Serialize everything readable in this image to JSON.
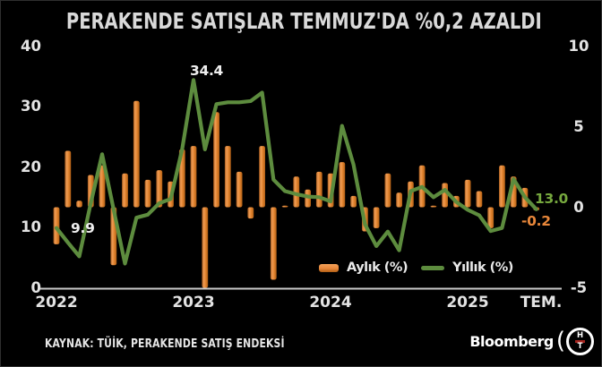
{
  "title": "PERAKENDE SATIŞLAR TEMMUZ'DA %0,2 AZALDI",
  "source": "KAYNAK: TÜİK, PERAKENDE SATIŞ ENDEKSİ",
  "branding": {
    "wordmark": "Bloomberg",
    "paren": "(",
    "emblem_top": "H",
    "emblem_bottom": "T"
  },
  "colors": {
    "background": "#000000",
    "text": "#e3e3e3",
    "bar_orange": "#e8873a",
    "line_green": "#5d8c3e",
    "annotation_green": "#76a83e",
    "annotation_orange": "#e8873a",
    "axis_line": "#c9c9c9",
    "logo_red": "#a6241f"
  },
  "chart_data": {
    "type": "bar+line",
    "x_unit": "month",
    "start": "2022-01",
    "end": "2025-07",
    "grid": false,
    "left_axis": {
      "range": [
        0,
        40
      ],
      "ticks": [
        0,
        10,
        20,
        30,
        40
      ],
      "series": "Yıllık (%)"
    },
    "right_axis": {
      "range": [
        -5,
        10
      ],
      "ticks": [
        -5,
        0,
        5,
        10
      ],
      "series": "Aylık (%)"
    },
    "x_ticks": [
      {
        "label": "2022",
        "m": 0
      },
      {
        "label": "2023",
        "m": 12
      },
      {
        "label": "2024",
        "m": 24
      },
      {
        "label": "2025",
        "m": 36
      },
      {
        "label": "TEM.",
        "m": 42
      }
    ],
    "series": [
      {
        "name": "Aylık (%)",
        "type": "bar",
        "axis": "right",
        "color": "#e8873a",
        "values": [
          -2.3,
          3.5,
          0.4,
          2.0,
          2.6,
          -3.6,
          2.1,
          6.6,
          1.7,
          2.3,
          1.6,
          3.6,
          3.8,
          -5.0,
          5.9,
          3.8,
          2.2,
          -0.7,
          3.8,
          -4.5,
          0.1,
          1.9,
          1.1,
          2.2,
          2.1,
          2.8,
          0.7,
          -1.5,
          -1.3,
          2.1,
          0.9,
          1.6,
          2.6,
          0.1,
          1.5,
          0.7,
          1.7,
          1.0,
          -1.3,
          2.6,
          1.9,
          1.2,
          -0.2
        ]
      },
      {
        "name": "Yıllık (%)",
        "type": "line",
        "axis": "left",
        "color": "#5d8c3e",
        "values": [
          9.9,
          7.5,
          5.2,
          14.0,
          22.1,
          13.0,
          4.0,
          11.6,
          12.1,
          14.0,
          14.7,
          22.9,
          34.4,
          22.9,
          30.4,
          30.7,
          30.7,
          30.9,
          32.3,
          17.9,
          16.0,
          15.5,
          15.1,
          15.0,
          14.3,
          26.8,
          20.4,
          10.5,
          6.9,
          9.3,
          6.2,
          16.0,
          16.7,
          15.0,
          16.2,
          14.2,
          12.9,
          12.0,
          9.4,
          9.9,
          18.0,
          15.0,
          13.0
        ]
      }
    ],
    "annotations": [
      {
        "text": "9.9",
        "series": "Yıllık (%)",
        "month_index": 0,
        "color": "#efefef"
      },
      {
        "text": "34.4",
        "series": "Yıllık (%)",
        "month_index": 12,
        "color": "#efefef"
      },
      {
        "text": "13.0",
        "series": "Yıllık (%)",
        "month_index": 42,
        "color": "#76a83e"
      },
      {
        "text": "-0.2",
        "series": "Aylık (%)",
        "month_index": 42,
        "color": "#e8873a"
      }
    ]
  }
}
